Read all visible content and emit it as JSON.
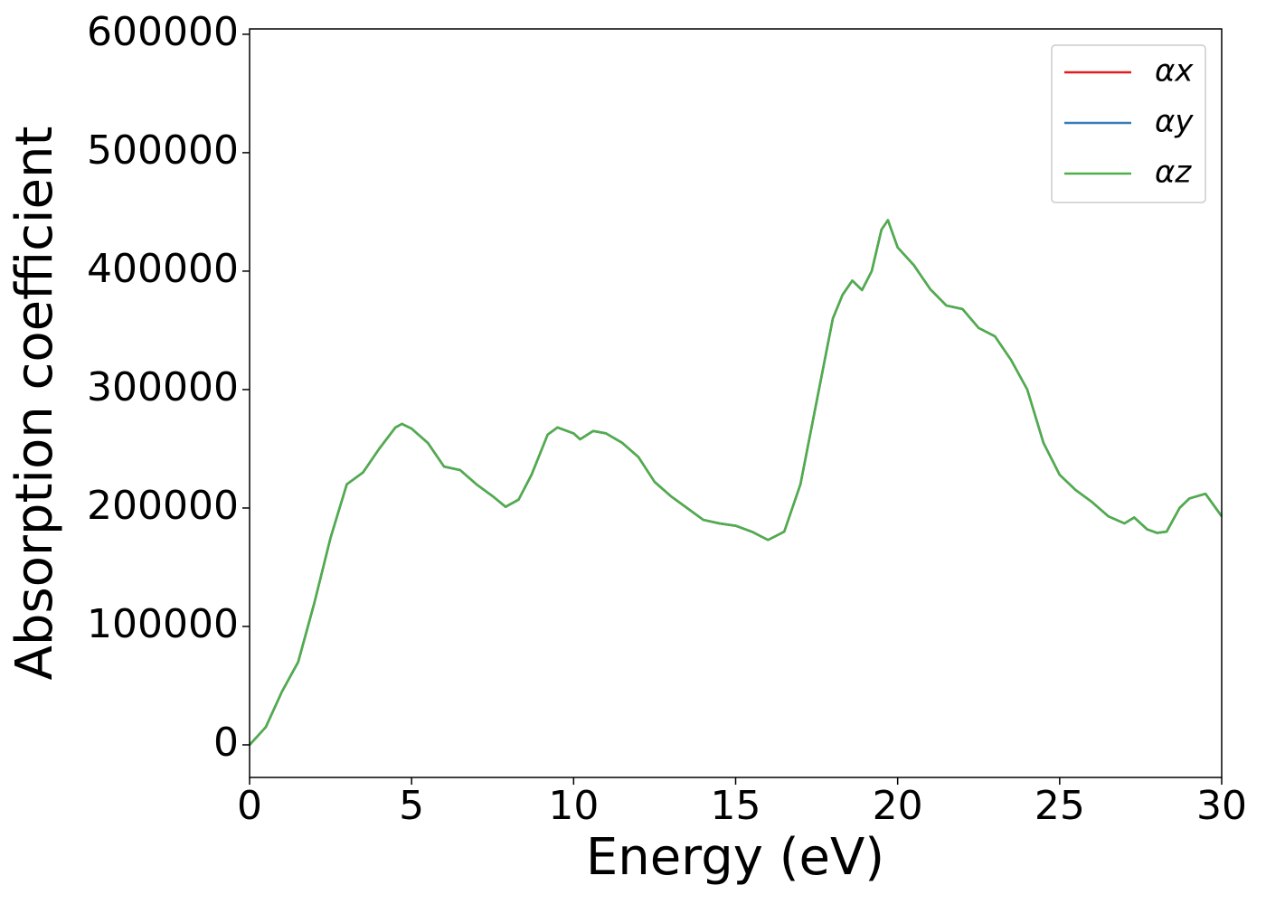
{
  "chart_data": {
    "type": "line",
    "xlabel": "Energy (eV)",
    "ylabel": "Absorption coefficient",
    "x": [
      0,
      0.5,
      1,
      1.5,
      2,
      2.5,
      3,
      3.5,
      4,
      4.5,
      4.7,
      5,
      5.5,
      6,
      6.5,
      7,
      7.5,
      7.9,
      8.3,
      8.7,
      9.2,
      9.5,
      10,
      10.2,
      10.6,
      11,
      11.5,
      12,
      12.5,
      13,
      13.5,
      14,
      14.5,
      15,
      15.5,
      16,
      16.5,
      17,
      17.5,
      18,
      18.3,
      18.6,
      18.9,
      19.2,
      19.5,
      19.7,
      20,
      20.5,
      21,
      21.5,
      22,
      22.5,
      23,
      23.5,
      24,
      24.5,
      25,
      25.5,
      26,
      26.5,
      27,
      27.3,
      27.7,
      28,
      28.3,
      28.7,
      29,
      29.5,
      30
    ],
    "series": [
      {
        "name": "αx",
        "color": "#e41a1c",
        "values": [
          0,
          15000,
          45000,
          70000,
          120000,
          175000,
          220000,
          230000,
          250000,
          268000,
          271000,
          267000,
          255000,
          235000,
          232000,
          220000,
          210000,
          201000,
          207000,
          228000,
          262000,
          268000,
          263000,
          258000,
          265000,
          263000,
          255000,
          243000,
          222000,
          210000,
          200000,
          190000,
          187000,
          185000,
          180000,
          173000,
          180000,
          220000,
          290000,
          360000,
          380000,
          392000,
          384000,
          400000,
          435000,
          443000,
          420000,
          405000,
          385000,
          371000,
          368000,
          352000,
          345000,
          325000,
          300000,
          255000,
          228000,
          215000,
          205000,
          193000,
          187000,
          192000,
          182000,
          179000,
          180000,
          200000,
          208000,
          212000,
          193000
        ]
      },
      {
        "name": "αy",
        "color": "#377eb8",
        "values": [
          0,
          15000,
          45000,
          70000,
          120000,
          175000,
          220000,
          230000,
          250000,
          268000,
          271000,
          267000,
          255000,
          235000,
          232000,
          220000,
          210000,
          201000,
          207000,
          228000,
          262000,
          268000,
          263000,
          258000,
          265000,
          263000,
          255000,
          243000,
          222000,
          210000,
          200000,
          190000,
          187000,
          185000,
          180000,
          173000,
          180000,
          220000,
          290000,
          360000,
          380000,
          392000,
          384000,
          400000,
          435000,
          443000,
          420000,
          405000,
          385000,
          371000,
          368000,
          352000,
          345000,
          325000,
          300000,
          255000,
          228000,
          215000,
          205000,
          193000,
          187000,
          192000,
          182000,
          179000,
          180000,
          200000,
          208000,
          212000,
          193000
        ]
      },
      {
        "name": "αz",
        "color": "#4daf4a",
        "values": [
          0,
          15000,
          45000,
          70000,
          120000,
          175000,
          220000,
          230000,
          250000,
          268000,
          271000,
          267000,
          255000,
          235000,
          232000,
          220000,
          210000,
          201000,
          207000,
          228000,
          262000,
          268000,
          263000,
          258000,
          265000,
          263000,
          255000,
          243000,
          222000,
          210000,
          200000,
          190000,
          187000,
          185000,
          180000,
          173000,
          180000,
          220000,
          290000,
          360000,
          380000,
          392000,
          384000,
          400000,
          435000,
          443000,
          420000,
          405000,
          385000,
          371000,
          368000,
          352000,
          345000,
          325000,
          300000,
          255000,
          228000,
          215000,
          205000,
          193000,
          187000,
          192000,
          182000,
          179000,
          180000,
          200000,
          208000,
          212000,
          193000
        ]
      }
    ],
    "xlim": [
      0,
      30
    ],
    "xticks": [
      0,
      5,
      10,
      15,
      20,
      25,
      30
    ],
    "ylim": [
      -27500,
      604500
    ],
    "yticks": [
      0,
      100000,
      200000,
      300000,
      400000,
      500000,
      600000
    ],
    "legend": "upper right"
  }
}
